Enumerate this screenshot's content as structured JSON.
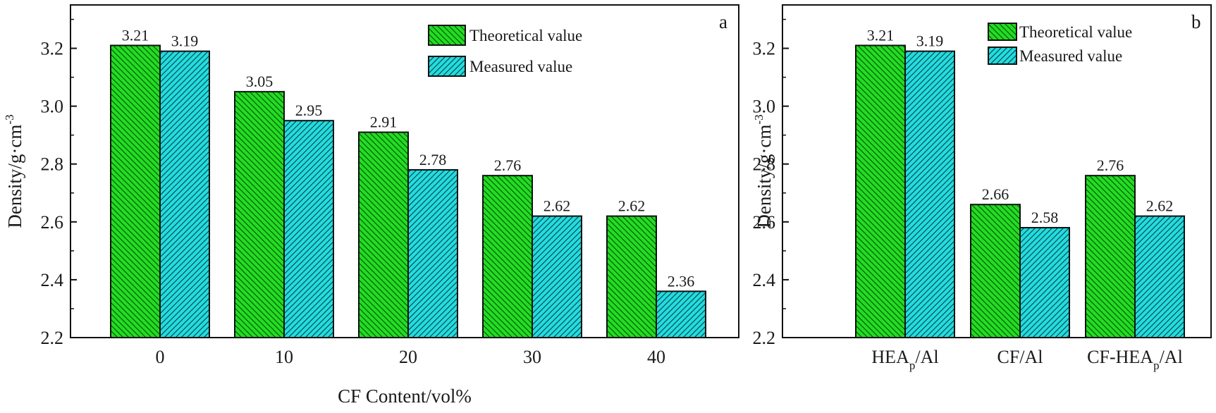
{
  "colors": {
    "theoretical_fill": "#22dd22",
    "measured_fill": "#22dddd",
    "bar_stroke": "#111111",
    "hatch": "#0a4a0a"
  },
  "legend": {
    "theoretical": "Theoretical value",
    "measured": "Measured value"
  },
  "chart_data": [
    {
      "type": "bar",
      "panel_label": "a",
      "categories": [
        "0",
        "10",
        "20",
        "30",
        "40"
      ],
      "xlabel": "CF Content/vol%",
      "ylabel": "Density/g·cm",
      "ylabel_sup": "-3",
      "ylim": [
        2.2,
        3.35
      ],
      "yticks": [
        "2.2",
        "2.4",
        "2.6",
        "2.8",
        "3.0",
        "3.2"
      ],
      "legend_position": "top-right",
      "series": [
        {
          "name": "Theoretical value",
          "values": [
            3.21,
            3.05,
            2.91,
            2.76,
            2.62
          ],
          "labels": [
            "3.21",
            "3.05",
            "2.91",
            "2.76",
            "2.62"
          ]
        },
        {
          "name": "Measured value",
          "values": [
            3.19,
            2.95,
            2.78,
            2.62,
            2.36
          ],
          "labels": [
            "3.19",
            "2.95",
            "2.78",
            "2.62",
            "2.36"
          ]
        }
      ]
    },
    {
      "type": "bar",
      "panel_label": "b",
      "categories": [
        {
          "base": "HEA",
          "sub": "p",
          "tail": "/Al"
        },
        {
          "base": "CF/Al",
          "sub": "",
          "tail": ""
        },
        {
          "base": "CF-HEA",
          "sub": "p",
          "tail": "/Al"
        }
      ],
      "xlabel": "",
      "ylabel": "Density/g·cm",
      "ylabel_sup": "-3",
      "ylim": [
        2.2,
        3.35
      ],
      "yticks": [
        "2.2",
        "2.4",
        "2.6",
        "2.8",
        "3.0",
        "3.2"
      ],
      "legend_position": "top-right",
      "series": [
        {
          "name": "Theoretical value",
          "values": [
            3.21,
            2.66,
            2.76
          ],
          "labels": [
            "3.21",
            "2.66",
            "2.76"
          ]
        },
        {
          "name": "Measured value",
          "values": [
            3.19,
            2.58,
            2.62
          ],
          "labels": [
            "3.19",
            "2.58",
            "2.62"
          ]
        }
      ]
    }
  ]
}
